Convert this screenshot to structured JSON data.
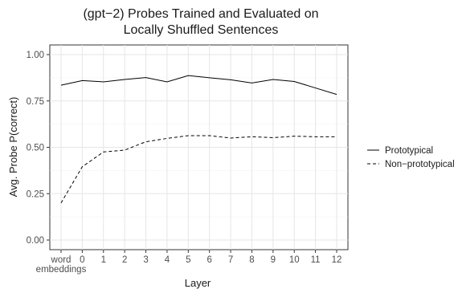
{
  "chart_data": {
    "type": "line",
    "title_lines": [
      "(gpt−2) Probes Trained and Evaluated on",
      "Locally Shuffled Sentences"
    ],
    "xlabel": "Layer",
    "ylabel": "Avg. Probe P(correct)",
    "categories": [
      [
        "word",
        "embeddings"
      ],
      [
        "0"
      ],
      [
        "1"
      ],
      [
        "2"
      ],
      [
        "3"
      ],
      [
        "4"
      ],
      [
        "5"
      ],
      [
        "6"
      ],
      [
        "7"
      ],
      [
        "8"
      ],
      [
        "9"
      ],
      [
        "10"
      ],
      [
        "11"
      ],
      [
        "12"
      ]
    ],
    "ylim": [
      0,
      1
    ],
    "yticks": [
      0,
      0.25,
      0.5,
      0.75,
      1.0
    ],
    "ytick_labels": [
      "0.00",
      "0.25",
      "0.50",
      "0.75",
      "1.00"
    ],
    "grid": true,
    "legend_position": "right",
    "series": [
      {
        "name": "Prototypical",
        "line_style": "solid",
        "values": [
          0.835,
          0.86,
          0.853,
          0.866,
          0.876,
          0.853,
          0.887,
          0.875,
          0.864,
          0.847,
          0.866,
          0.855,
          0.82,
          0.785
        ]
      },
      {
        "name": "Non−prototypical",
        "line_style": "dashed",
        "values": [
          0.2,
          0.395,
          0.475,
          0.485,
          0.53,
          0.548,
          0.563,
          0.563,
          0.55,
          0.557,
          0.552,
          0.56,
          0.557,
          0.557
        ]
      }
    ]
  }
}
